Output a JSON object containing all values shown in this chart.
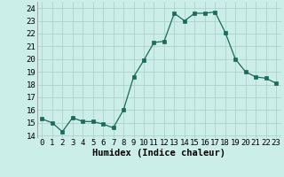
{
  "x": [
    0,
    1,
    2,
    3,
    4,
    5,
    6,
    7,
    8,
    9,
    10,
    11,
    12,
    13,
    14,
    15,
    16,
    17,
    18,
    19,
    20,
    21,
    22,
    23
  ],
  "y": [
    15.3,
    15.0,
    14.3,
    15.4,
    15.1,
    15.1,
    14.9,
    14.6,
    16.0,
    18.6,
    19.9,
    21.3,
    21.4,
    23.6,
    23.0,
    23.6,
    23.6,
    23.7,
    22.1,
    20.0,
    19.0,
    18.6,
    18.5,
    18.1
  ],
  "line_color": "#1a6b5a",
  "marker_color": "#1a6b5a",
  "bg_color": "#cceee8",
  "grid_color": "#aaccc6",
  "xlabel": "Humidex (Indice chaleur)",
  "xlim": [
    -0.5,
    23.5
  ],
  "ylim": [
    13.8,
    24.5
  ],
  "yticks": [
    14,
    15,
    16,
    17,
    18,
    19,
    20,
    21,
    22,
    23,
    24
  ],
  "xtick_labels": [
    "0",
    "1",
    "2",
    "3",
    "4",
    "5",
    "6",
    "7",
    "8",
    "9",
    "10",
    "11",
    "12",
    "13",
    "14",
    "15",
    "16",
    "17",
    "18",
    "19",
    "20",
    "21",
    "22",
    "23"
  ],
  "xlabel_fontsize": 7.5,
  "tick_fontsize": 6.5
}
